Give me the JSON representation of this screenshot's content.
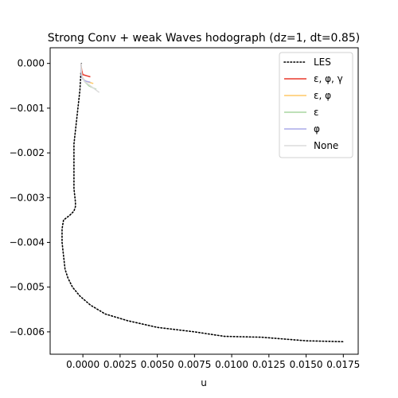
{
  "chart_data": {
    "type": "line",
    "title": "Strong Conv + weak Waves hodograph (dz=1, dt=0.85)",
    "xlabel": "u",
    "ylabel": "",
    "xlim": [
      -0.0022,
      0.0185
    ],
    "ylim": [
      -0.0065,
      0.00035
    ],
    "xticks": [
      0.0,
      0.0025,
      0.005,
      0.0075,
      0.01,
      0.0125,
      0.015,
      0.0175
    ],
    "xtick_labels": [
      "0.0000",
      "0.0025",
      "0.0050",
      "0.0075",
      "0.0100",
      "0.0125",
      "0.0150",
      "0.0175"
    ],
    "yticks": [
      0.0,
      -0.001,
      -0.002,
      -0.003,
      -0.004,
      -0.005,
      -0.006
    ],
    "ytick_labels": [
      "0.000",
      "−0.001",
      "−0.002",
      "−0.003",
      "−0.004",
      "−0.005",
      "−0.006"
    ],
    "grid": false,
    "legend_position": "top-right",
    "series": [
      {
        "name": "LES",
        "color": "#000000",
        "style": "dotted",
        "x": [
          -0.0001,
          -0.00015,
          -0.0002,
          -0.0003,
          -0.0004,
          -0.0005,
          -0.0006,
          -0.0006,
          -0.0006,
          -0.0006,
          -0.0005,
          -0.0005,
          -0.0006,
          -0.0009,
          -0.0013,
          -0.0014,
          -0.0014,
          -0.0013,
          -0.0012,
          -0.001,
          -0.0007,
          -0.0002,
          0.0005,
          0.0015,
          0.003,
          0.005,
          0.0075,
          0.0095,
          0.012,
          0.015,
          0.0175
        ],
        "y": [
          0.0,
          -0.0003,
          -0.0006,
          -0.0009,
          -0.0012,
          -0.0015,
          -0.0018,
          -0.0022,
          -0.0025,
          -0.0028,
          -0.0031,
          -0.0032,
          -0.0033,
          -0.0034,
          -0.0035,
          -0.0037,
          -0.004,
          -0.0043,
          -0.0046,
          -0.0048,
          -0.005,
          -0.0052,
          -0.0054,
          -0.0056,
          -0.00575,
          -0.0059,
          -0.006,
          -0.0061,
          -0.00612,
          -0.0062,
          -0.00622
        ]
      },
      {
        "name": "ε, φ, γ",
        "color": "#e8382c",
        "style": "solid",
        "x": [
          -0.0001,
          -0.00012,
          -0.0001,
          -8e-05,
          -5e-05,
          0.0,
          0.0003,
          0.0005
        ],
        "y": [
          0.0,
          -5e-05,
          -0.0001,
          -0.00015,
          -0.0002,
          -0.00025,
          -0.00028,
          -0.0003
        ]
      },
      {
        "name": "ε, φ",
        "color": "#ffc966",
        "style": "solid",
        "x": [
          -0.0001,
          -0.00012,
          -0.0001,
          -5e-05,
          0.0001,
          0.0004,
          0.0007
        ],
        "y": [
          0.0,
          -0.0001,
          -0.0002,
          -0.0003,
          -0.00038,
          -0.00042,
          -0.00045
        ]
      },
      {
        "name": "ε",
        "color": "#a8d5a0",
        "style": "solid",
        "x": [
          -0.0001,
          -0.00012,
          -0.0001,
          -5e-05,
          0.0001,
          0.0004,
          0.0009
        ],
        "y": [
          0.0,
          -0.0001,
          -0.0002,
          -0.0003,
          -0.0004,
          -0.0005,
          -0.00058
        ]
      },
      {
        "name": "φ",
        "color": "#aaaae8",
        "style": "solid",
        "x": [
          -0.0001,
          -0.00013,
          -0.00012,
          -8e-05,
          0.0,
          0.0002,
          0.0005
        ],
        "y": [
          0.0,
          -0.0001,
          -0.0002,
          -0.0003,
          -0.00035,
          -0.0004,
          -0.00042
        ]
      },
      {
        "name": "None",
        "color": "#dcdcdc",
        "style": "solid",
        "x": [
          -0.0001,
          -0.00012,
          -0.0001,
          -5e-05,
          0.0001,
          0.0005,
          0.0011
        ],
        "y": [
          0.0,
          -0.0001,
          -0.0002,
          -0.0003,
          -0.0004,
          -0.0005,
          -0.00065
        ]
      }
    ]
  }
}
